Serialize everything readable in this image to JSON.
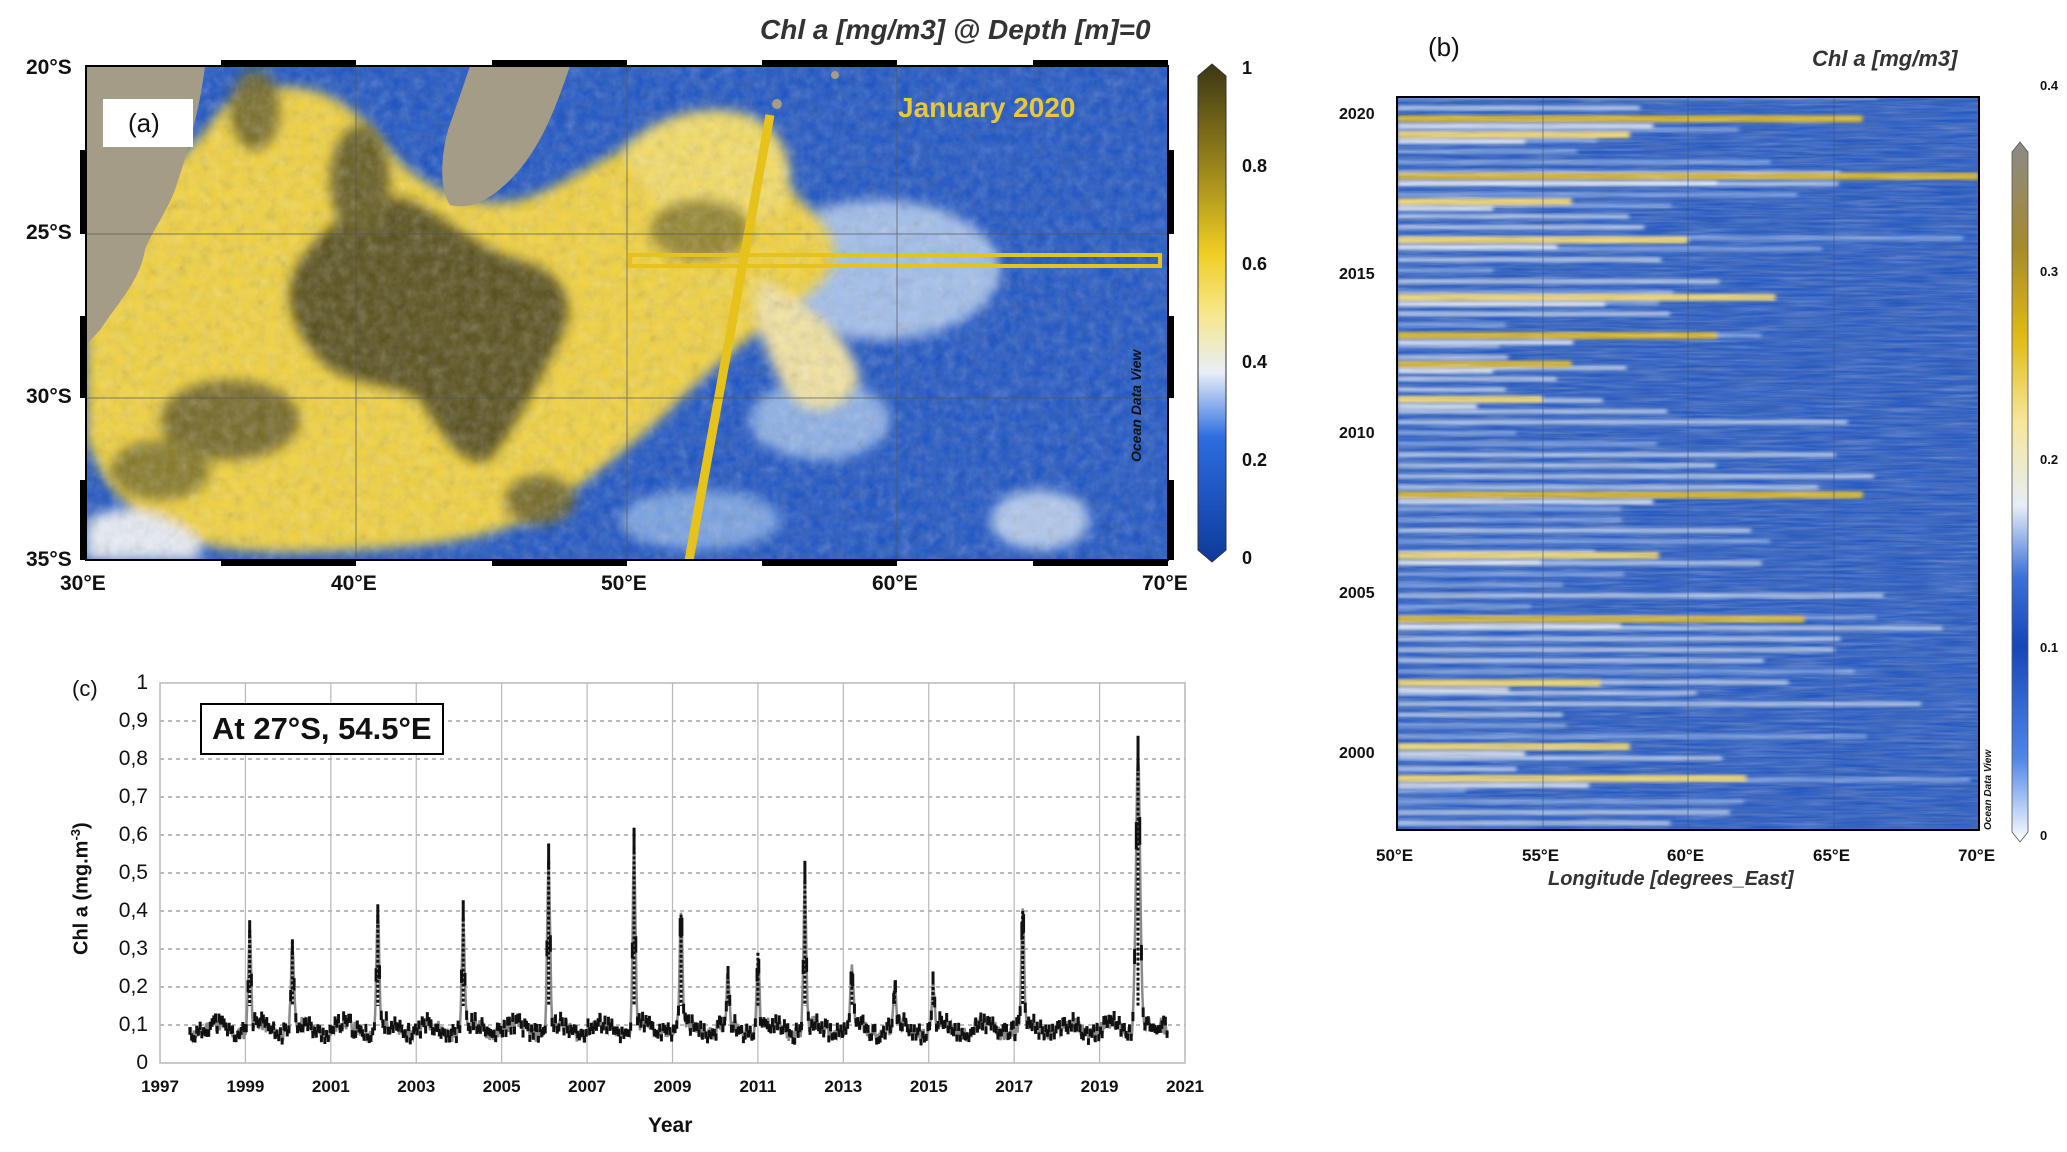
{
  "panel_a": {
    "label": "(a)",
    "title": "Chl a [mg/m3] @ Depth [m]=0",
    "annotation": "January 2020",
    "watermark": "Ocean Data View",
    "lat_ticks": [
      "20°S",
      "25°S",
      "30°S",
      "35°S"
    ],
    "lon_ticks": [
      "30°E",
      "40°E",
      "50°E",
      "60°E",
      "70°E"
    ],
    "colorbar_ticks": [
      "1",
      "0.8",
      "0.6",
      "0.4",
      "0.2",
      "0"
    ]
  },
  "panel_b": {
    "label": "(b)",
    "title": "Chl a [mg/m3]",
    "xlabel": "Longitude [degrees_East]",
    "watermark": "Ocean Data View",
    "x_ticks": [
      "50°E",
      "55°E",
      "60°E",
      "65°E",
      "70°E"
    ],
    "y_ticks": [
      "2020",
      "2015",
      "2010",
      "2005",
      "2000"
    ],
    "colorbar_ticks": [
      "0.4",
      "0.3",
      "0.2",
      "0.1",
      "0"
    ]
  },
  "panel_c": {
    "label": "(c)",
    "annotation": "At 27°S, 54.5°E",
    "xlabel": "Year",
    "ylabel": "Chl a (mg.m",
    "ylabel_sup": "-3",
    "ylabel_end": ")",
    "x_ticks": [
      "1997",
      "1999",
      "2001",
      "2003",
      "2005",
      "2007",
      "2009",
      "2011",
      "2013",
      "2015",
      "2017",
      "2019",
      "2021"
    ],
    "y_ticks": [
      "0",
      "0,1",
      "0,2",
      "0,3",
      "0,4",
      "0,5",
      "0,6",
      "0,7",
      "0,8",
      "0,9",
      "1"
    ]
  },
  "colors": {
    "ocean_blue": "#1a52c4",
    "chl_yellow": "#f2d23a",
    "chl_dark": "#4a4318",
    "land": "#a59c88",
    "series_black": "#111111",
    "series_grey": "#8a8a8a"
  },
  "chart_data": [
    {
      "type": "heatmap",
      "panel": "a",
      "description_units": "Chl a mg/m3",
      "x_range": [
        30,
        70
      ],
      "y_range": [
        -35,
        -20
      ],
      "color_range": [
        0,
        1
      ]
    },
    {
      "type": "heatmap",
      "panel": "b",
      "x_range": [
        50,
        70
      ],
      "y_range": [
        1997.5,
        2020.5
      ],
      "color_range": [
        0,
        0.4
      ],
      "bloom_rows": [
        {
          "year": 2019.8,
          "x0": 50,
          "x1": 66,
          "v": 0.28
        },
        {
          "year": 2019.3,
          "x0": 50,
          "x1": 58,
          "v": 0.22
        },
        {
          "year": 2018.0,
          "x0": 50,
          "x1": 70,
          "v": 0.24
        },
        {
          "year": 2017.2,
          "x0": 50,
          "x1": 56,
          "v": 0.2
        },
        {
          "year": 2016.0,
          "x0": 50,
          "x1": 60,
          "v": 0.22
        },
        {
          "year": 2014.2,
          "x0": 50,
          "x1": 63,
          "v": 0.2
        },
        {
          "year": 2013.0,
          "x0": 50,
          "x1": 61,
          "v": 0.26
        },
        {
          "year": 2012.1,
          "x0": 50,
          "x1": 56,
          "v": 0.25
        },
        {
          "year": 2011.0,
          "x0": 50,
          "x1": 55,
          "v": 0.2
        },
        {
          "year": 2008.0,
          "x0": 50,
          "x1": 66,
          "v": 0.24
        },
        {
          "year": 2006.1,
          "x0": 50,
          "x1": 59,
          "v": 0.2
        },
        {
          "year": 2004.1,
          "x0": 50,
          "x1": 64,
          "v": 0.24
        },
        {
          "year": 2002.1,
          "x0": 50,
          "x1": 57,
          "v": 0.21
        },
        {
          "year": 2000.1,
          "x0": 50,
          "x1": 58,
          "v": 0.22
        },
        {
          "year": 1999.1,
          "x0": 50,
          "x1": 62,
          "v": 0.23
        }
      ]
    },
    {
      "type": "line",
      "panel": "c",
      "xlabel": "Year",
      "ylabel": "Chl a (mg.m-3)",
      "xlim": [
        1997,
        2021
      ],
      "ylim": [
        0,
        1
      ],
      "baseline": 0.09,
      "peaks": [
        {
          "x": 1999.1,
          "y": 0.35
        },
        {
          "x": 2000.1,
          "y": 0.32
        },
        {
          "x": 2002.1,
          "y": 0.39
        },
        {
          "x": 2004.1,
          "y": 0.38
        },
        {
          "x": 2006.1,
          "y": 0.53
        },
        {
          "x": 2008.1,
          "y": 0.57
        },
        {
          "x": 2009.2,
          "y": 0.39
        },
        {
          "x": 2010.3,
          "y": 0.23
        },
        {
          "x": 2011.0,
          "y": 0.29
        },
        {
          "x": 2012.1,
          "y": 0.48
        },
        {
          "x": 2013.2,
          "y": 0.24
        },
        {
          "x": 2014.2,
          "y": 0.19
        },
        {
          "x": 2015.1,
          "y": 0.2
        },
        {
          "x": 2017.2,
          "y": 0.4
        },
        {
          "x": 2019.9,
          "y": 0.83
        }
      ],
      "series_start": 1997.7,
      "series_end": 2020.6
    }
  ]
}
